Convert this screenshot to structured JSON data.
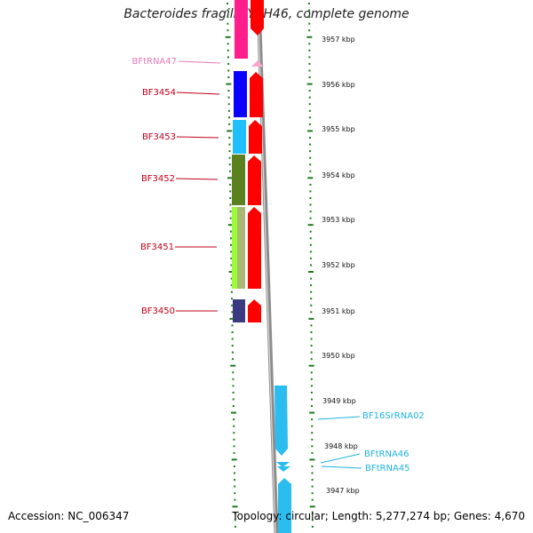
{
  "title": "Bacteroides fragilis YCH46, complete genome",
  "accession": "Accession: NC_006347",
  "topology": "Topology: circular; Length: 5,277,274 bp; Genes: 4,670",
  "colors": {
    "dot_green": "#1f7a1f",
    "backbone": "#8c8c8c",
    "label_red": "#c0001a",
    "label_pink": "#e879b9",
    "label_cyan": "#1fb2e0"
  },
  "scale": [
    {
      "label": "3957 kbp"
    },
    {
      "label": "3956 kbp"
    },
    {
      "label": "3955 kbp"
    },
    {
      "label": "3954 kbp"
    },
    {
      "label": "3953 kbp"
    },
    {
      "label": "3952 kbp"
    },
    {
      "label": "3951 kbp"
    },
    {
      "label": "3950 kbp"
    },
    {
      "label": "3949 kbp"
    },
    {
      "label": "3948 kbp"
    },
    {
      "label": "3947 kbp"
    }
  ],
  "genes": [
    {
      "name": "BFtRNA47",
      "color": "#e879b9"
    },
    {
      "name": "BF3454",
      "color": "#c0001a"
    },
    {
      "name": "BF3453",
      "color": "#c0001a"
    },
    {
      "name": "BF3452",
      "color": "#c0001a"
    },
    {
      "name": "BF3451",
      "color": "#c0001a"
    },
    {
      "name": "BF3450",
      "color": "#c0001a"
    },
    {
      "name": "BF16SrRNA02",
      "color": "#1fb2e0"
    },
    {
      "name": "BFtRNA46",
      "color": "#1fb2e0"
    },
    {
      "name": "BFtRNA45",
      "color": "#1fb2e0"
    }
  ]
}
